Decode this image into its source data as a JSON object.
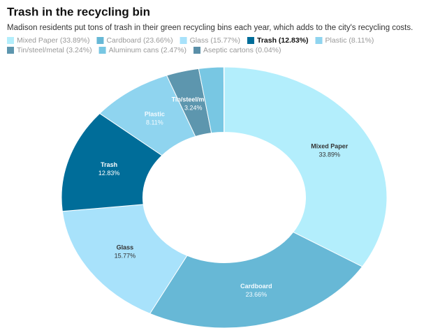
{
  "chart_data": {
    "type": "donut",
    "title": "Trash in the recycling bin",
    "subtitle": "Madison residents put tons of trash in their green recycling bins each year, which adds to the city's recycling costs.",
    "categories": [
      "Mixed Paper",
      "Cardboard",
      "Glass",
      "Trash",
      "Plastic",
      "Tin/steel/metal",
      "Aluminum cans",
      "Aseptic cartons"
    ],
    "values": [
      33.89,
      23.66,
      15.77,
      12.83,
      8.11,
      3.24,
      2.47,
      0.04
    ],
    "value_labels": [
      "33.89%",
      "23.66%",
      "15.77%",
      "12.83%",
      "8.11%",
      "3.24%",
      null,
      null
    ],
    "legend_labels": [
      "Mixed Paper (33.89%)",
      "Cardboard (23.66%)",
      "Glass (15.77%)",
      "Trash (12.83%)",
      "Plastic (8.11%)",
      "Tin/steel/metal (3.24%)",
      "Aluminum cans (2.47%)",
      "Aseptic cartons (0.04%)"
    ],
    "colors": [
      "#b3eefc",
      "#67b8d6",
      "#a8e2fb",
      "#006d99",
      "#8fd4ef",
      "#5d96ae",
      "#78c7e3",
      "#5a8fa8"
    ],
    "highlighted_category": "Trash"
  }
}
